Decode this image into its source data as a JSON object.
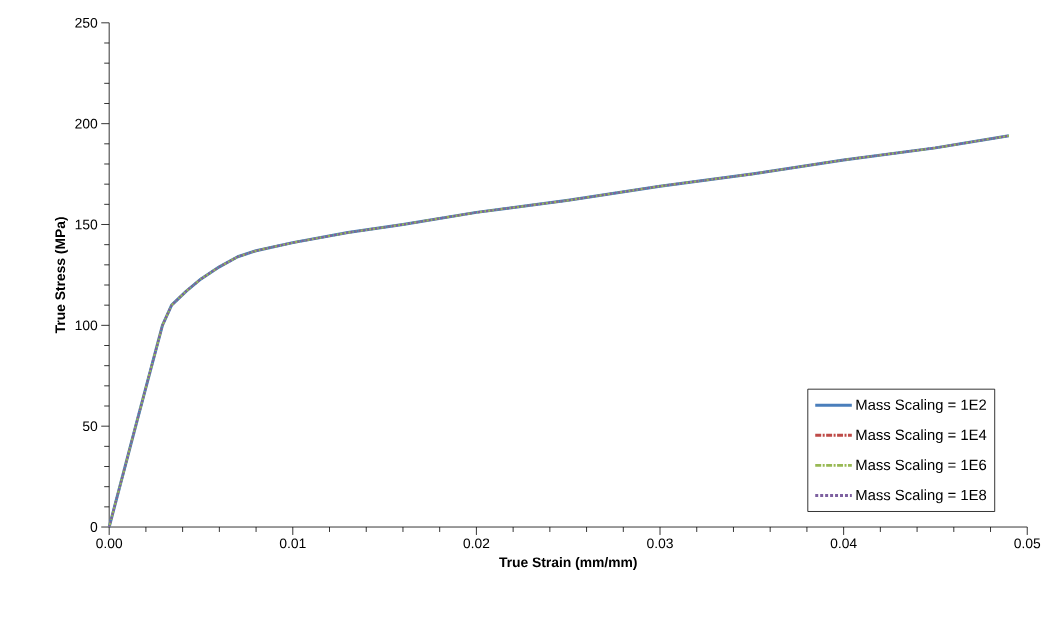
{
  "chart_data": {
    "type": "line",
    "xlabel": "True Strain (mm/mm)",
    "ylabel": "True Stress (MPa)",
    "x": [
      0,
      0.0015,
      0.0029,
      0.0034,
      0.0042,
      0.005,
      0.006,
      0.007,
      0.008,
      0.01,
      0.013,
      0.016,
      0.02,
      0.025,
      0.03,
      0.035,
      0.04,
      0.045,
      0.049
    ],
    "series": [
      {
        "name": "Mass Scaling = 1E2",
        "color": "#4a7ebb",
        "line_style": "solid",
        "values": [
          0,
          52,
          100,
          110,
          117,
          123,
          129,
          134,
          137,
          141,
          146,
          150,
          156,
          162,
          169,
          175,
          182,
          188,
          194
        ]
      },
      {
        "name": "Mass Scaling = 1E4",
        "color": "#be4b48",
        "line_style": "dashdot",
        "values": [
          null,
          null,
          null,
          null,
          null,
          null,
          null,
          null,
          null,
          null,
          null,
          null,
          null,
          null,
          null,
          null,
          null,
          null,
          null
        ]
      },
      {
        "name": "Mass Scaling = 1E6",
        "color": "#98b954",
        "line_style": "dashdot",
        "values": [
          0,
          52,
          100,
          110,
          117,
          123,
          129,
          134,
          137,
          141,
          146,
          150,
          156,
          162,
          169,
          175,
          182,
          188,
          194
        ]
      },
      {
        "name": "Mass Scaling = 1E8",
        "color": "#7d60a0",
        "line_style": "dotted",
        "values": [
          0,
          52,
          100,
          110,
          117,
          123,
          129,
          134,
          137,
          141,
          146,
          150,
          156,
          162,
          169,
          175,
          182,
          188,
          194
        ]
      }
    ],
    "xlim": [
      0,
      0.05
    ],
    "ylim": [
      0,
      250
    ],
    "xticks": [
      {
        "value": 0,
        "label": "0.00"
      },
      {
        "value": 0.01,
        "label": "0.01"
      },
      {
        "value": 0.02,
        "label": "0.02"
      },
      {
        "value": 0.03,
        "label": "0.03"
      },
      {
        "value": 0.04,
        "label": "0.04"
      },
      {
        "value": 0.05,
        "label": "0.05"
      }
    ],
    "yticks": [
      0,
      50,
      100,
      150,
      200,
      250
    ],
    "legend": "bottom right",
    "grid": false,
    "marker": "none"
  }
}
